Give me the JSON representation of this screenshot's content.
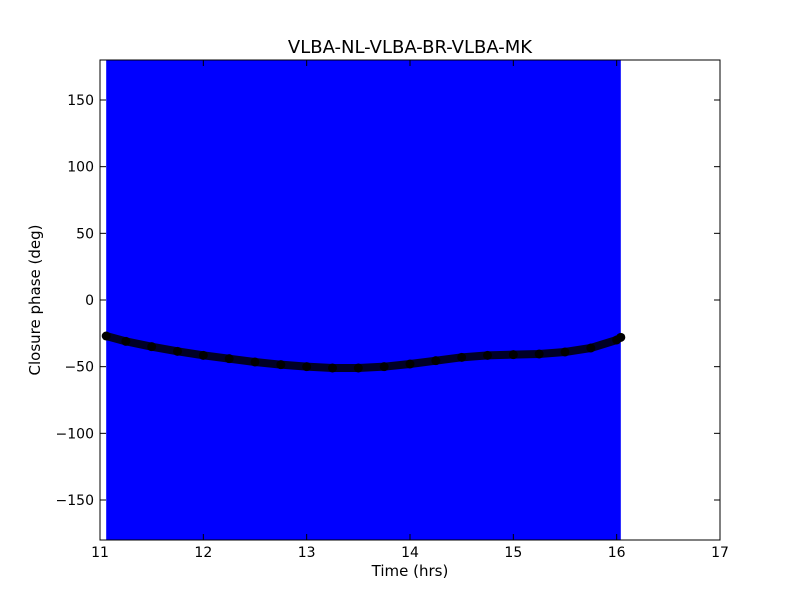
{
  "chart_data": {
    "type": "scatter",
    "title": "VLBA-NL-VLBA-BR-VLBA-MK",
    "xlabel": "Time (hrs)",
    "ylabel": "Closure phase (deg)",
    "xlim": [
      11,
      17
    ],
    "ylim": [
      -180,
      180
    ],
    "xticks": [
      11,
      12,
      13,
      14,
      15,
      16,
      17
    ],
    "yticks": [
      -150,
      -100,
      -50,
      0,
      50,
      100,
      150
    ],
    "ytick_labels": [
      "−150",
      "−100",
      "−50",
      "0",
      "50",
      "100",
      "150"
    ],
    "grid": false,
    "colors": {
      "error_band": "#0000ff",
      "points": "#000000",
      "axes": "#000000"
    },
    "error_band": {
      "x_start": 11.06,
      "x_end": 16.04,
      "y_low": -180,
      "y_high": 180
    },
    "series": [
      {
        "x": [
          11.06,
          11.25,
          11.5,
          11.75,
          12.0,
          12.25,
          12.5,
          12.75,
          13.0,
          13.25,
          13.5,
          13.75,
          14.0,
          14.25,
          14.5,
          14.75,
          15.0,
          15.25,
          15.5,
          15.75,
          16.0,
          16.04
        ],
        "y": [
          -27,
          -31,
          -35,
          -38.5,
          -41.5,
          -44,
          -46.5,
          -48.5,
          -50,
          -51,
          -51,
          -50,
          -48,
          -45.5,
          -43,
          -41.5,
          -41,
          -40.5,
          -39,
          -36,
          -30,
          -28
        ]
      }
    ]
  }
}
